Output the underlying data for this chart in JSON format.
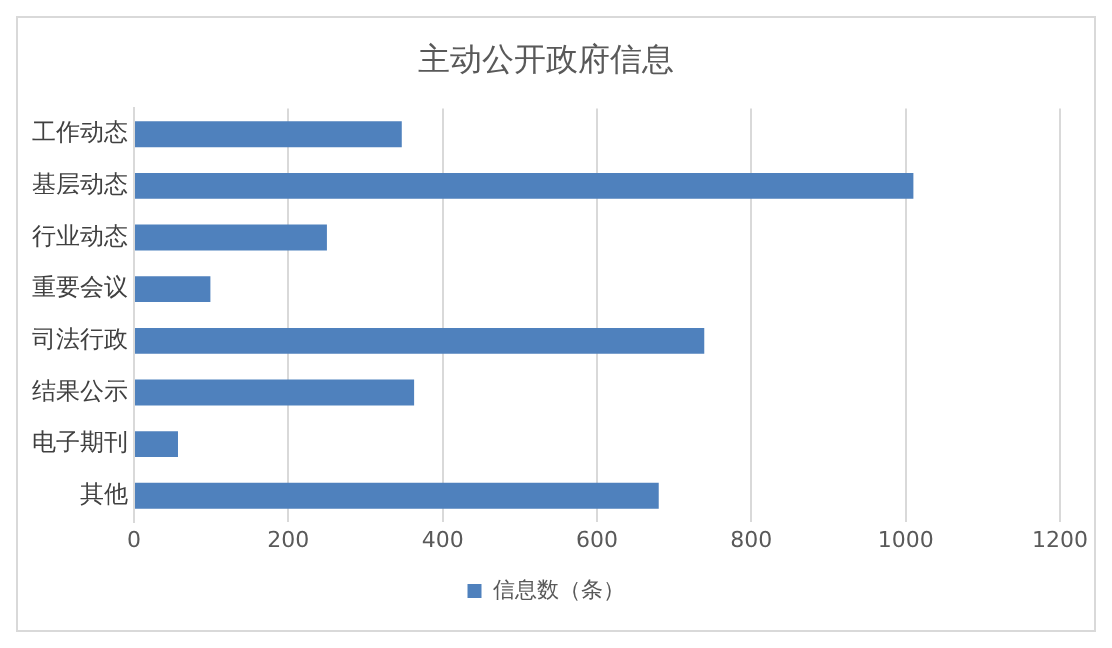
{
  "chart_data": {
    "type": "bar",
    "orientation": "horizontal",
    "title": "主动公开政府信息",
    "categories": [
      "工作动态",
      "基层动态",
      "行业动态",
      "重要会议",
      "司法行政",
      "结果公示",
      "电子期刊",
      "其他"
    ],
    "series": [
      {
        "name": "信息数（条）",
        "color": "#4f81bd",
        "values": [
          347,
          1010,
          250,
          99,
          739,
          363,
          57,
          680
        ]
      }
    ],
    "xlim": [
      0,
      1200
    ],
    "xticks": [
      0,
      200,
      400,
      600,
      800,
      1000,
      1200
    ],
    "grid": "x",
    "legend": "bottom"
  }
}
